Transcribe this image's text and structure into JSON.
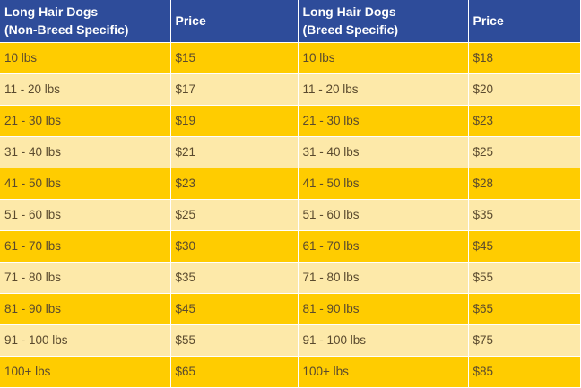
{
  "table": {
    "headers": [
      "Long Hair Dogs\n(Non-Breed Specific)",
      "Price",
      "Long Hair Dogs\n(Breed Specific)",
      "Price"
    ],
    "rows": [
      [
        "10 lbs",
        "$15",
        "10 lbs",
        "$18"
      ],
      [
        "11 - 20 lbs",
        "$17",
        "11 - 20 lbs",
        "$20"
      ],
      [
        "21 - 30 lbs",
        "$19",
        "21 - 30 lbs",
        "$23"
      ],
      [
        "31 - 40 lbs",
        "$21",
        "31 - 40 lbs",
        "$25"
      ],
      [
        "41 - 50 lbs",
        "$23",
        "41 - 50 lbs",
        "$28"
      ],
      [
        "51 - 60 lbs",
        "$25",
        "51 - 60 lbs",
        "$35"
      ],
      [
        "61 - 70 lbs",
        "$30",
        "61 - 70 lbs",
        "$45"
      ],
      [
        "71 - 80 lbs",
        "$35",
        "71 - 80 lbs",
        "$55"
      ],
      [
        "81 - 90 lbs",
        "$45",
        "81 - 90 lbs",
        "$65"
      ],
      [
        "91 - 100 lbs",
        "$55",
        "91 - 100 lbs",
        "$75"
      ],
      [
        "100+ lbs",
        "$65",
        "100+ lbs",
        "$85"
      ]
    ]
  },
  "colors": {
    "header_bg": "#2e4c9a",
    "row_odd_bg": "#ffcc00",
    "row_even_bg": "#fde9a9",
    "text": "#5a4a2e"
  }
}
